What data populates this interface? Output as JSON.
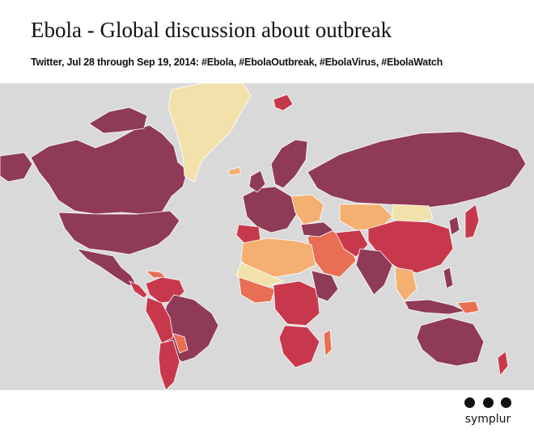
{
  "header": {
    "title": "Ebola - Global discussion about outbreak",
    "subtitle": "Twitter, Jul 28 through Sep 19, 2014: #Ebola, #EbolaOutbreak, #EbolaVirus, #EbolaWatch"
  },
  "map": {
    "background_color": "#d9d9d9",
    "palette": {
      "highest": "#8f3b57",
      "high": "#c8384c",
      "medium": "#e86f54",
      "low": "#f3b071",
      "lowest": "#f2e1ab"
    }
  },
  "brand": {
    "name": "symplur",
    "logo_icon": "three-dots-icon"
  }
}
